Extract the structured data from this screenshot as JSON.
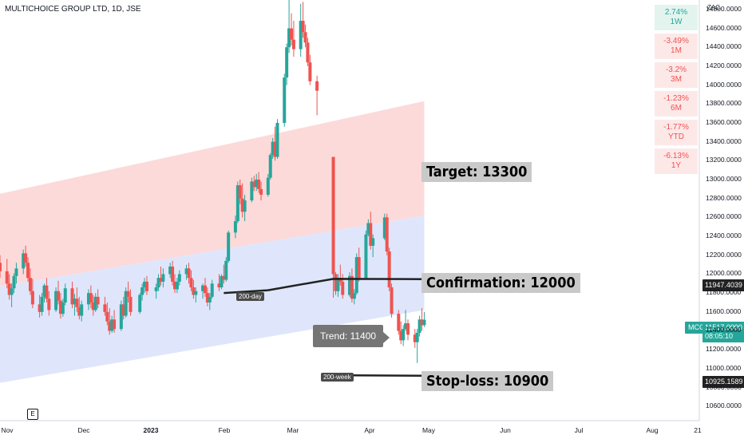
{
  "header": {
    "title": "MULTICHOICE GROUP LTD, 1D, JSE",
    "currency": "ZAC"
  },
  "performance": [
    {
      "pct": "2.74%",
      "period": "1W",
      "positive": true
    },
    {
      "pct": "-3.49%",
      "period": "1M",
      "positive": false
    },
    {
      "pct": "-3.2%",
      "period": "3M",
      "positive": false
    },
    {
      "pct": "-1.23%",
      "period": "6M",
      "positive": false
    },
    {
      "pct": "-1.77%",
      "period": "YTD",
      "positive": false
    },
    {
      "pct": "-6.13%",
      "period": "1Y",
      "positive": false
    }
  ],
  "annotations": {
    "target": "Target: 13300",
    "confirmation": "Confirmation: 12000",
    "stoploss": "Stop-loss: 10900",
    "trend": "Trend: 11400",
    "ma200day": "200-day",
    "ma200week": "200-week"
  },
  "price_tags": {
    "ma200day_value": "11947.4039",
    "symbol": "MCG",
    "last_price": "11517.0000",
    "countdown": "08:05:10",
    "ma200week_value": "10925.1589"
  },
  "event_badge": "E",
  "colors": {
    "up": "#26a69a",
    "down": "#ef5350",
    "channel_upper": "#fbd3d3",
    "channel_lower": "#dbe3fb",
    "ma_line": "#222222"
  },
  "chart_data": {
    "type": "candlestick",
    "title": "MULTICHOICE GROUP LTD, 1D, JSE",
    "y_axis": {
      "ticks": [
        "14800.0000",
        "14600.0000",
        "14400.0000",
        "14200.0000",
        "14000.0000",
        "13800.0000",
        "13600.0000",
        "13400.0000",
        "13200.0000",
        "13000.0000",
        "12800.0000",
        "12600.0000",
        "12400.0000",
        "12200.0000",
        "12000.0000",
        "11800.0000",
        "11600.0000",
        "11400.0000",
        "11200.0000",
        "11000.0000",
        "10800.0000",
        "10600.0000"
      ],
      "ylim": [
        10450,
        14900
      ]
    },
    "x_axis": {
      "ticks": [
        "Nov",
        "Dec",
        "2023",
        "Feb",
        "Mar",
        "Apr",
        "May",
        "Jun",
        "Jul",
        "Aug",
        "21"
      ],
      "xlim": [
        "2022-10-28",
        "2023-08-24"
      ]
    },
    "channel": {
      "upper_band": {
        "start": {
          "date": "2022-10-28",
          "value": 12850
        },
        "end": {
          "date": "2023-04-28",
          "value": 13830
        }
      },
      "mid_line": {
        "start": {
          "date": "2022-10-28",
          "value": 11870
        },
        "end": {
          "date": "2023-04-28",
          "value": 12620
        }
      },
      "lower_band": {
        "start": {
          "date": "2022-10-28",
          "value": 10850
        },
        "end": {
          "date": "2023-04-28",
          "value": 11620
        }
      }
    },
    "moving_averages": [
      {
        "name": "200-day",
        "values": [
          {
            "date": "2023-02-01",
            "value": 11800
          },
          {
            "date": "2023-02-20",
            "value": 11830
          },
          {
            "date": "2023-03-20",
            "value": 11950
          },
          {
            "date": "2023-04-28",
            "value": 11947
          }
        ]
      },
      {
        "name": "200-week",
        "values": [
          {
            "date": "2023-03-21",
            "value": 10930
          },
          {
            "date": "2023-04-28",
            "value": 10925
          }
        ]
      }
    ],
    "candles": [
      {
        "date": "2022-10-28",
        "o": 12120,
        "h": 12200,
        "l": 11960,
        "c": 12030
      },
      {
        "date": "2022-10-31",
        "o": 12030,
        "h": 12160,
        "l": 11850,
        "c": 11900
      },
      {
        "date": "2022-11-01",
        "o": 11900,
        "h": 12000,
        "l": 11730,
        "c": 11780
      },
      {
        "date": "2022-11-02",
        "o": 11780,
        "h": 11900,
        "l": 11650,
        "c": 11850
      },
      {
        "date": "2022-11-03",
        "o": 11850,
        "h": 12010,
        "l": 11800,
        "c": 11980
      },
      {
        "date": "2022-11-04",
        "o": 11980,
        "h": 12120,
        "l": 11900,
        "c": 12060
      },
      {
        "date": "2022-11-07",
        "o": 12060,
        "h": 12260,
        "l": 12000,
        "c": 12220
      },
      {
        "date": "2022-11-08",
        "o": 12220,
        "h": 12300,
        "l": 12080,
        "c": 12120
      },
      {
        "date": "2022-11-09",
        "o": 12120,
        "h": 12180,
        "l": 11920,
        "c": 11960
      },
      {
        "date": "2022-11-10",
        "o": 11960,
        "h": 12060,
        "l": 11780,
        "c": 11820
      },
      {
        "date": "2022-11-11",
        "o": 11820,
        "h": 11950,
        "l": 11640,
        "c": 11680
      },
      {
        "date": "2022-11-14",
        "o": 11680,
        "h": 11780,
        "l": 11540,
        "c": 11600
      },
      {
        "date": "2022-11-15",
        "o": 11600,
        "h": 11800,
        "l": 11560,
        "c": 11760
      },
      {
        "date": "2022-11-16",
        "o": 11760,
        "h": 11900,
        "l": 11700,
        "c": 11880
      },
      {
        "date": "2022-11-17",
        "o": 11880,
        "h": 11960,
        "l": 11700,
        "c": 11740
      },
      {
        "date": "2022-11-18",
        "o": 11740,
        "h": 11820,
        "l": 11560,
        "c": 11620
      },
      {
        "date": "2022-11-21",
        "o": 11620,
        "h": 11860,
        "l": 11600,
        "c": 11820
      },
      {
        "date": "2022-11-22",
        "o": 11820,
        "h": 11930,
        "l": 11680,
        "c": 11720
      },
      {
        "date": "2022-11-23",
        "o": 11720,
        "h": 11800,
        "l": 11530,
        "c": 11580
      },
      {
        "date": "2022-11-24",
        "o": 11580,
        "h": 11740,
        "l": 11550,
        "c": 11700
      },
      {
        "date": "2022-11-25",
        "o": 11700,
        "h": 11900,
        "l": 11670,
        "c": 11850
      },
      {
        "date": "2022-11-28",
        "o": 11850,
        "h": 11920,
        "l": 11640,
        "c": 11680
      },
      {
        "date": "2022-11-29",
        "o": 11680,
        "h": 11790,
        "l": 11560,
        "c": 11740
      },
      {
        "date": "2022-11-30",
        "o": 11740,
        "h": 11860,
        "l": 11600,
        "c": 11650
      },
      {
        "date": "2022-12-01",
        "o": 11650,
        "h": 11760,
        "l": 11520,
        "c": 11560
      },
      {
        "date": "2022-12-02",
        "o": 11560,
        "h": 11720,
        "l": 11500,
        "c": 11680
      },
      {
        "date": "2022-12-05",
        "o": 11680,
        "h": 11840,
        "l": 11620,
        "c": 11800
      },
      {
        "date": "2022-12-06",
        "o": 11800,
        "h": 11880,
        "l": 11640,
        "c": 11700
      },
      {
        "date": "2022-12-07",
        "o": 11700,
        "h": 11780,
        "l": 11560,
        "c": 11620
      },
      {
        "date": "2022-12-08",
        "o": 11620,
        "h": 11800,
        "l": 11600,
        "c": 11760
      },
      {
        "date": "2022-12-09",
        "o": 11760,
        "h": 11840,
        "l": 11640,
        "c": 11680
      },
      {
        "date": "2022-12-12",
        "o": 11680,
        "h": 11760,
        "l": 11560,
        "c": 11600
      },
      {
        "date": "2022-12-13",
        "o": 11600,
        "h": 11700,
        "l": 11460,
        "c": 11500
      },
      {
        "date": "2022-12-14",
        "o": 11500,
        "h": 11640,
        "l": 11360,
        "c": 11400
      },
      {
        "date": "2022-12-15",
        "o": 11400,
        "h": 11560,
        "l": 11380,
        "c": 11520
      },
      {
        "date": "2022-12-16",
        "o": 11520,
        "h": 11620,
        "l": 11380,
        "c": 11420
      },
      {
        "date": "2022-12-19",
        "o": 11420,
        "h": 11720,
        "l": 11400,
        "c": 11680
      },
      {
        "date": "2022-12-20",
        "o": 11680,
        "h": 11760,
        "l": 11520,
        "c": 11560
      },
      {
        "date": "2022-12-21",
        "o": 11560,
        "h": 11860,
        "l": 11540,
        "c": 11820
      },
      {
        "date": "2022-12-22",
        "o": 11820,
        "h": 11920,
        "l": 11700,
        "c": 11760
      },
      {
        "date": "2022-12-23",
        "o": 11760,
        "h": 11840,
        "l": 11560,
        "c": 11600
      },
      {
        "date": "2022-12-27",
        "o": 11600,
        "h": 11800,
        "l": 11580,
        "c": 11780
      },
      {
        "date": "2022-12-28",
        "o": 11780,
        "h": 11900,
        "l": 11720,
        "c": 11860
      },
      {
        "date": "2022-12-29",
        "o": 11860,
        "h": 11960,
        "l": 11800,
        "c": 11920
      },
      {
        "date": "2022-12-30",
        "o": 11920,
        "h": 11980,
        "l": 11780,
        "c": 11820
      },
      {
        "date": "2023-01-03",
        "o": 11820,
        "h": 11900,
        "l": 11740,
        "c": 11860
      },
      {
        "date": "2023-01-04",
        "o": 11860,
        "h": 12000,
        "l": 11820,
        "c": 11960
      },
      {
        "date": "2023-01-05",
        "o": 11960,
        "h": 12080,
        "l": 11880,
        "c": 11920
      },
      {
        "date": "2023-01-06",
        "o": 11920,
        "h": 12060,
        "l": 11860,
        "c": 12000
      },
      {
        "date": "2023-01-09",
        "o": 12000,
        "h": 12120,
        "l": 11960,
        "c": 12080
      },
      {
        "date": "2023-01-10",
        "o": 12080,
        "h": 12140,
        "l": 11880,
        "c": 11920
      },
      {
        "date": "2023-01-11",
        "o": 11920,
        "h": 12000,
        "l": 11800,
        "c": 11840
      },
      {
        "date": "2023-01-12",
        "o": 11840,
        "h": 11960,
        "l": 11800,
        "c": 11920
      },
      {
        "date": "2023-01-13",
        "o": 11920,
        "h": 12040,
        "l": 11880,
        "c": 12000
      },
      {
        "date": "2023-01-16",
        "o": 12000,
        "h": 12100,
        "l": 11940,
        "c": 12060
      },
      {
        "date": "2023-01-17",
        "o": 12060,
        "h": 12120,
        "l": 11900,
        "c": 11960
      },
      {
        "date": "2023-01-18",
        "o": 11960,
        "h": 12040,
        "l": 11820,
        "c": 11860
      },
      {
        "date": "2023-01-19",
        "o": 11860,
        "h": 11940,
        "l": 11740,
        "c": 11780
      },
      {
        "date": "2023-01-20",
        "o": 11780,
        "h": 11860,
        "l": 11700,
        "c": 11820
      },
      {
        "date": "2023-01-23",
        "o": 11820,
        "h": 11900,
        "l": 11740,
        "c": 11880
      },
      {
        "date": "2023-01-24",
        "o": 11880,
        "h": 11960,
        "l": 11760,
        "c": 11800
      },
      {
        "date": "2023-01-25",
        "o": 11800,
        "h": 11860,
        "l": 11660,
        "c": 11700
      },
      {
        "date": "2023-01-26",
        "o": 11700,
        "h": 11800,
        "l": 11620,
        "c": 11760
      },
      {
        "date": "2023-01-27",
        "o": 11760,
        "h": 11940,
        "l": 11740,
        "c": 11900
      },
      {
        "date": "2023-01-30",
        "o": 11900,
        "h": 12000,
        "l": 11820,
        "c": 11860
      },
      {
        "date": "2023-01-31",
        "o": 11860,
        "h": 12000,
        "l": 11840,
        "c": 11980
      },
      {
        "date": "2023-02-01",
        "o": 11980,
        "h": 12100,
        "l": 11900,
        "c": 11940
      },
      {
        "date": "2023-02-02",
        "o": 11940,
        "h": 12180,
        "l": 11920,
        "c": 12140
      },
      {
        "date": "2023-02-03",
        "o": 12140,
        "h": 12460,
        "l": 12120,
        "c": 12440
      },
      {
        "date": "2023-02-06",
        "o": 12440,
        "h": 12620,
        "l": 12380,
        "c": 12560
      },
      {
        "date": "2023-02-07",
        "o": 12560,
        "h": 12980,
        "l": 12540,
        "c": 12940
      },
      {
        "date": "2023-02-08",
        "o": 12940,
        "h": 13000,
        "l": 12740,
        "c": 12800
      },
      {
        "date": "2023-02-09",
        "o": 12800,
        "h": 12960,
        "l": 12600,
        "c": 12660
      },
      {
        "date": "2023-02-10",
        "o": 12660,
        "h": 12840,
        "l": 12560,
        "c": 12780
      },
      {
        "date": "2023-02-13",
        "o": 12780,
        "h": 13020,
        "l": 12760,
        "c": 12980
      },
      {
        "date": "2023-02-14",
        "o": 12980,
        "h": 13040,
        "l": 12880,
        "c": 12920
      },
      {
        "date": "2023-02-15",
        "o": 12920,
        "h": 13060,
        "l": 12880,
        "c": 13000
      },
      {
        "date": "2023-02-16",
        "o": 13000,
        "h": 13080,
        "l": 12860,
        "c": 12900
      },
      {
        "date": "2023-02-17",
        "o": 12900,
        "h": 12980,
        "l": 12780,
        "c": 12840
      },
      {
        "date": "2023-02-20",
        "o": 12840,
        "h": 13060,
        "l": 12820,
        "c": 13020
      },
      {
        "date": "2023-02-21",
        "o": 13020,
        "h": 13280,
        "l": 13000,
        "c": 13260
      },
      {
        "date": "2023-02-22",
        "o": 13260,
        "h": 13440,
        "l": 13220,
        "c": 13400
      },
      {
        "date": "2023-02-23",
        "o": 13400,
        "h": 13560,
        "l": 13200,
        "c": 13240
      },
      {
        "date": "2023-02-24",
        "o": 13240,
        "h": 13640,
        "l": 13220,
        "c": 13600
      },
      {
        "date": "2023-02-27",
        "o": 13600,
        "h": 14120,
        "l": 13560,
        "c": 14080
      },
      {
        "date": "2023-02-28",
        "o": 14080,
        "h": 14440,
        "l": 14000,
        "c": 14400
      },
      {
        "date": "2023-03-01",
        "o": 14400,
        "h": 14920,
        "l": 14340,
        "c": 14600
      },
      {
        "date": "2023-03-02",
        "o": 14600,
        "h": 14760,
        "l": 14420,
        "c": 14480
      },
      {
        "date": "2023-03-03",
        "o": 14480,
        "h": 14680,
        "l": 14300,
        "c": 14380
      },
      {
        "date": "2023-03-06",
        "o": 14380,
        "h": 14860,
        "l": 14300,
        "c": 14680
      },
      {
        "date": "2023-03-07",
        "o": 14680,
        "h": 14880,
        "l": 14500,
        "c": 14560
      },
      {
        "date": "2023-03-08",
        "o": 14560,
        "h": 14640,
        "l": 14400,
        "c": 14450
      },
      {
        "date": "2023-03-09",
        "o": 14450,
        "h": 14500,
        "l": 14200,
        "c": 14240
      },
      {
        "date": "2023-03-10",
        "o": 14240,
        "h": 14320,
        "l": 14000,
        "c": 14040
      },
      {
        "date": "2023-03-13",
        "o": 14040,
        "h": 14100,
        "l": 13680,
        "c": 13940
      },
      {
        "date": "2023-03-20",
        "o": 13240,
        "h": 13240,
        "l": 11750,
        "c": 12000
      },
      {
        "date": "2023-03-21",
        "o": 12000,
        "h": 12020,
        "l": 11780,
        "c": 11820
      },
      {
        "date": "2023-03-22",
        "o": 11820,
        "h": 12000,
        "l": 11760,
        "c": 11960
      },
      {
        "date": "2023-03-23",
        "o": 11960,
        "h": 12100,
        "l": 11880,
        "c": 11920
      },
      {
        "date": "2023-03-24",
        "o": 11920,
        "h": 12000,
        "l": 11740,
        "c": 11780
      },
      {
        "date": "2023-03-27",
        "o": 11780,
        "h": 12020,
        "l": 11760,
        "c": 11980
      },
      {
        "date": "2023-03-28",
        "o": 11980,
        "h": 12060,
        "l": 11700,
        "c": 11740
      },
      {
        "date": "2023-03-29",
        "o": 11740,
        "h": 11840,
        "l": 11680,
        "c": 11800
      },
      {
        "date": "2023-03-30",
        "o": 11800,
        "h": 12220,
        "l": 11780,
        "c": 12180
      },
      {
        "date": "2023-03-31",
        "o": 12180,
        "h": 12280,
        "l": 11920,
        "c": 11960
      },
      {
        "date": "2023-04-03",
        "o": 11960,
        "h": 12460,
        "l": 11940,
        "c": 12420
      },
      {
        "date": "2023-04-04",
        "o": 12420,
        "h": 12580,
        "l": 12400,
        "c": 12540
      },
      {
        "date": "2023-04-05",
        "o": 12540,
        "h": 12660,
        "l": 12260,
        "c": 12300
      },
      {
        "date": "2023-04-06",
        "o": 12300,
        "h": 12420,
        "l": 12180,
        "c": 12380
      },
      {
        "date": "2023-04-11",
        "o": 12380,
        "h": 12640,
        "l": 12360,
        "c": 12600
      },
      {
        "date": "2023-04-12",
        "o": 12600,
        "h": 12640,
        "l": 12200,
        "c": 12240
      },
      {
        "date": "2023-04-13",
        "o": 12240,
        "h": 12280,
        "l": 11820,
        "c": 11860
      },
      {
        "date": "2023-04-14",
        "o": 11860,
        "h": 11900,
        "l": 11540,
        "c": 11580
      },
      {
        "date": "2023-04-17",
        "o": 11580,
        "h": 11620,
        "l": 11360,
        "c": 11400
      },
      {
        "date": "2023-04-18",
        "o": 11400,
        "h": 11500,
        "l": 11260,
        "c": 11300
      },
      {
        "date": "2023-04-19",
        "o": 11300,
        "h": 11460,
        "l": 11240,
        "c": 11420
      },
      {
        "date": "2023-04-20",
        "o": 11420,
        "h": 11620,
        "l": 11400,
        "c": 11480
      },
      {
        "date": "2023-04-21",
        "o": 11480,
        "h": 11520,
        "l": 11300,
        "c": 11360
      },
      {
        "date": "2023-04-24",
        "o": 11360,
        "h": 11420,
        "l": 11220,
        "c": 11280
      },
      {
        "date": "2023-04-25",
        "o": 11280,
        "h": 11420,
        "l": 11060,
        "c": 11380
      },
      {
        "date": "2023-04-26",
        "o": 11380,
        "h": 11560,
        "l": 11340,
        "c": 11520
      },
      {
        "date": "2023-04-27",
        "o": 11520,
        "h": 11640,
        "l": 11400,
        "c": 11460
      },
      {
        "date": "2023-04-28",
        "o": 11460,
        "h": 11600,
        "l": 11440,
        "c": 11517
      }
    ]
  }
}
